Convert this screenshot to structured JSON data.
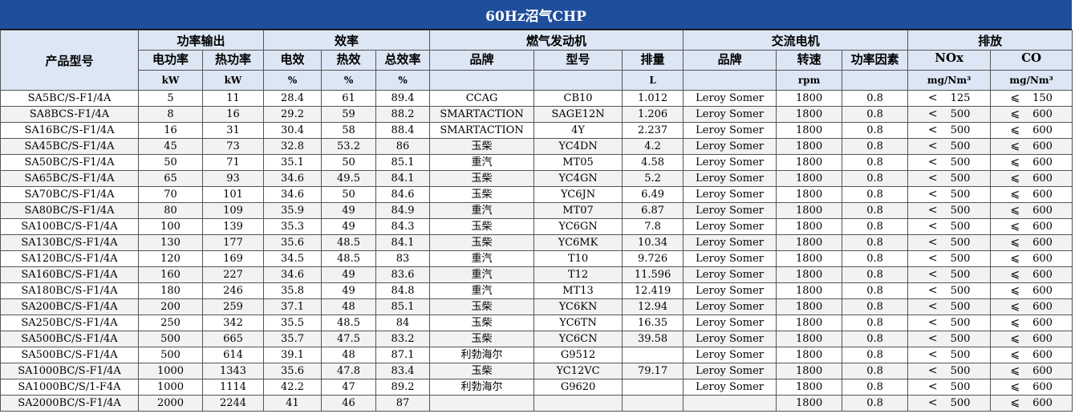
{
  "title": "60Hz沼气CHP",
  "groups": {
    "model": "产品型号",
    "power_output": "功率输出",
    "efficiency": "效率",
    "gas_engine": "燃气发动机",
    "ac_generator": "交流电机",
    "emissions": "排放"
  },
  "columns": {
    "elec_power": {
      "label": "电功率",
      "unit": "kW"
    },
    "heat_power": {
      "label": "热功率",
      "unit": "kW"
    },
    "elec_eff": {
      "label": "电效",
      "unit": "%"
    },
    "heat_eff": {
      "label": "热效",
      "unit": "%"
    },
    "total_eff": {
      "label": "总效率",
      "unit": "%"
    },
    "engine_brand": {
      "label": "品牌",
      "unit": ""
    },
    "engine_model": {
      "label": "型号",
      "unit": ""
    },
    "displacement": {
      "label": "排量",
      "unit": "L"
    },
    "gen_brand": {
      "label": "品牌",
      "unit": ""
    },
    "speed": {
      "label": "转速",
      "unit": "rpm"
    },
    "power_factor": {
      "label": "功率因素",
      "unit": ""
    },
    "nox": {
      "label": "NOx",
      "unit": "mg/Nm³"
    },
    "co": {
      "label": "CO",
      "unit": "mg/Nm³"
    }
  },
  "rows": [
    {
      "model": "SA5BC/S-F1/4A",
      "ep": "5",
      "hp": "11",
      "ee": "28.4",
      "he": "61",
      "te": "89.4",
      "eb": "CCAG",
      "em": "CB10",
      "disp": "1.012",
      "gb": "Leroy Somer",
      "rpm": "1800",
      "pf": "0.8",
      "nox_op": "<",
      "nox": "125",
      "co_op": "⩽",
      "co": "150"
    },
    {
      "model": "SA8BCS-F1/4A",
      "ep": "8",
      "hp": "16",
      "ee": "29.2",
      "he": "59",
      "te": "88.2",
      "eb": "SMARTACTION",
      "em": "SAGE12N",
      "disp": "1.206",
      "gb": "Leroy Somer",
      "rpm": "1800",
      "pf": "0.8",
      "nox_op": "<",
      "nox": "500",
      "co_op": "⩽",
      "co": "600"
    },
    {
      "model": "SA16BC/S-F1/4A",
      "ep": "16",
      "hp": "31",
      "ee": "30.4",
      "he": "58",
      "te": "88.4",
      "eb": "SMARTACTION",
      "em": "4Y",
      "disp": "2.237",
      "gb": "Leroy Somer",
      "rpm": "1800",
      "pf": "0.8",
      "nox_op": "<",
      "nox": "500",
      "co_op": "⩽",
      "co": "600"
    },
    {
      "model": "SA45BC/S-F1/4A",
      "ep": "45",
      "hp": "73",
      "ee": "32.8",
      "he": "53.2",
      "te": "86",
      "eb": "玉柴",
      "em": "YC4DN",
      "disp": "4.2",
      "gb": "Leroy Somer",
      "rpm": "1800",
      "pf": "0.8",
      "nox_op": "<",
      "nox": "500",
      "co_op": "⩽",
      "co": "600"
    },
    {
      "model": "SA50BC/S-F1/4A",
      "ep": "50",
      "hp": "71",
      "ee": "35.1",
      "he": "50",
      "te": "85.1",
      "eb": "重汽",
      "em": "MT05",
      "disp": "4.58",
      "gb": "Leroy Somer",
      "rpm": "1800",
      "pf": "0.8",
      "nox_op": "<",
      "nox": "500",
      "co_op": "⩽",
      "co": "600"
    },
    {
      "model": "SA65BC/S-F1/4A",
      "ep": "65",
      "hp": "93",
      "ee": "34.6",
      "he": "49.5",
      "te": "84.1",
      "eb": "玉柴",
      "em": "YC4GN",
      "disp": "5.2",
      "gb": "Leroy Somer",
      "rpm": "1800",
      "pf": "0.8",
      "nox_op": "<",
      "nox": "500",
      "co_op": "⩽",
      "co": "600"
    },
    {
      "model": "SA70BC/S-F1/4A",
      "ep": "70",
      "hp": "101",
      "ee": "34.6",
      "he": "50",
      "te": "84.6",
      "eb": "玉柴",
      "em": "YC6JN",
      "disp": "6.49",
      "gb": "Leroy Somer",
      "rpm": "1800",
      "pf": "0.8",
      "nox_op": "<",
      "nox": "500",
      "co_op": "⩽",
      "co": "600"
    },
    {
      "model": "SA80BC/S-F1/4A",
      "ep": "80",
      "hp": "109",
      "ee": "35.9",
      "he": "49",
      "te": "84.9",
      "eb": "重汽",
      "em": "MT07",
      "disp": "6.87",
      "gb": "Leroy Somer",
      "rpm": "1800",
      "pf": "0.8",
      "nox_op": "<",
      "nox": "500",
      "co_op": "⩽",
      "co": "600"
    },
    {
      "model": "SA100BC/S-F1/4A",
      "ep": "100",
      "hp": "139",
      "ee": "35.3",
      "he": "49",
      "te": "84.3",
      "eb": "玉柴",
      "em": "YC6GN",
      "disp": "7.8",
      "gb": "Leroy Somer",
      "rpm": "1800",
      "pf": "0.8",
      "nox_op": "<",
      "nox": "500",
      "co_op": "⩽",
      "co": "600"
    },
    {
      "model": "SA130BC/S-F1/4A",
      "ep": "130",
      "hp": "177",
      "ee": "35.6",
      "he": "48.5",
      "te": "84.1",
      "eb": "玉柴",
      "em": "YC6MK",
      "disp": "10.34",
      "gb": "Leroy Somer",
      "rpm": "1800",
      "pf": "0.8",
      "nox_op": "<",
      "nox": "500",
      "co_op": "⩽",
      "co": "600"
    },
    {
      "model": "SA120BC/S-F1/4A",
      "ep": "120",
      "hp": "169",
      "ee": "34.5",
      "he": "48.5",
      "te": "83",
      "eb": "重汽",
      "em": "T10",
      "disp": "9.726",
      "gb": "Leroy Somer",
      "rpm": "1800",
      "pf": "0.8",
      "nox_op": "<",
      "nox": "500",
      "co_op": "⩽",
      "co": "600"
    },
    {
      "model": "SA160BC/S-F1/4A",
      "ep": "160",
      "hp": "227",
      "ee": "34.6",
      "he": "49",
      "te": "83.6",
      "eb": "重汽",
      "em": "T12",
      "disp": "11.596",
      "gb": "Leroy Somer",
      "rpm": "1800",
      "pf": "0.8",
      "nox_op": "<",
      "nox": "500",
      "co_op": "⩽",
      "co": "600"
    },
    {
      "model": "SA180BC/S-F1/4A",
      "ep": "180",
      "hp": "246",
      "ee": "35.8",
      "he": "49",
      "te": "84.8",
      "eb": "重汽",
      "em": "MT13",
      "disp": "12.419",
      "gb": "Leroy Somer",
      "rpm": "1800",
      "pf": "0.8",
      "nox_op": "<",
      "nox": "500",
      "co_op": "⩽",
      "co": "600"
    },
    {
      "model": "SA200BC/S-F1/4A",
      "ep": "200",
      "hp": "259",
      "ee": "37.1",
      "he": "48",
      "te": "85.1",
      "eb": "玉柴",
      "em": "YC6KN",
      "disp": "12.94",
      "gb": "Leroy Somer",
      "rpm": "1800",
      "pf": "0.8",
      "nox_op": "<",
      "nox": "500",
      "co_op": "⩽",
      "co": "600"
    },
    {
      "model": "SA250BC/S-F1/4A",
      "ep": "250",
      "hp": "342",
      "ee": "35.5",
      "he": "48.5",
      "te": "84",
      "eb": "玉柴",
      "em": "YC6TN",
      "disp": "16.35",
      "gb": "Leroy Somer",
      "rpm": "1800",
      "pf": "0.8",
      "nox_op": "<",
      "nox": "500",
      "co_op": "⩽",
      "co": "600"
    },
    {
      "model": "SA500BC/S-F1/4A",
      "ep": "500",
      "hp": "665",
      "ee": "35.7",
      "he": "47.5",
      "te": "83.2",
      "eb": "玉柴",
      "em": "YC6CN",
      "disp": "39.58",
      "gb": "Leroy Somer",
      "rpm": "1800",
      "pf": "0.8",
      "nox_op": "<",
      "nox": "500",
      "co_op": "⩽",
      "co": "600"
    },
    {
      "model": "SA500BC/S-F1/4A",
      "ep": "500",
      "hp": "614",
      "ee": "39.1",
      "he": "48",
      "te": "87.1",
      "eb": "利勃海尔",
      "em": "G9512",
      "disp": "",
      "gb": "Leroy Somer",
      "rpm": "1800",
      "pf": "0.8",
      "nox_op": "<",
      "nox": "500",
      "co_op": "⩽",
      "co": "600"
    },
    {
      "model": "SA1000BC/S-F1/4A",
      "ep": "1000",
      "hp": "1343",
      "ee": "35.6",
      "he": "47.8",
      "te": "83.4",
      "eb": "玉柴",
      "em": "YC12VC",
      "disp": "79.17",
      "gb": "Leroy Somer",
      "rpm": "1800",
      "pf": "0.8",
      "nox_op": "<",
      "nox": "500",
      "co_op": "⩽",
      "co": "600"
    },
    {
      "model": "SA1000BC/S/1-F4A",
      "ep": "1000",
      "hp": "1114",
      "ee": "42.2",
      "he": "47",
      "te": "89.2",
      "eb": "利勃海尔",
      "em": "G9620",
      "disp": "",
      "gb": "Leroy Somer",
      "rpm": "1800",
      "pf": "0.8",
      "nox_op": "<",
      "nox": "500",
      "co_op": "⩽",
      "co": "600"
    },
    {
      "model": "SA2000BC/S-F1/4A",
      "ep": "2000",
      "hp": "2244",
      "ee": "41",
      "he": "46",
      "te": "87",
      "eb": "",
      "em": "",
      "disp": "",
      "gb": "",
      "rpm": "1800",
      "pf": "0.8",
      "nox_op": "<",
      "nox": "500",
      "co_op": "⩽",
      "co": "600"
    }
  ]
}
